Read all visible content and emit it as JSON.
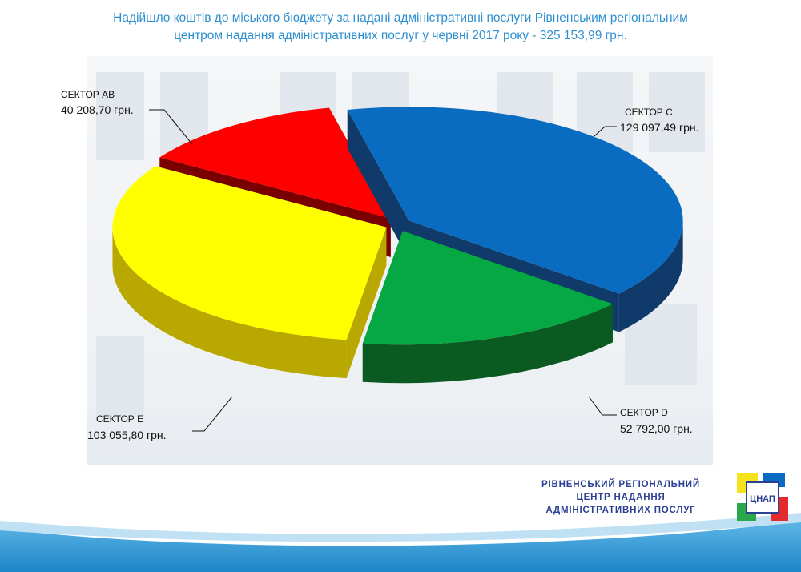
{
  "title_lines": [
    "Надійшло коштів до міського бюджету за надані адміністративні послуги Рівненським регіональним",
    "центром надання адміністративних послуг у червні 2017 року - 325 153,99 грн."
  ],
  "chart_data": {
    "type": "pie",
    "title": "Надійшло коштів до міського бюджету за надані адміністративні послуги Рівненським регіональним центром надання адміністративних послуг у червні 2017 року - 325 153,99 грн.",
    "total": 325153.99,
    "slices": [
      {
        "name": "СЕКТОР С",
        "value": 129097.49,
        "value_label": "129 097,49 грн.",
        "color": "#0a6cc0",
        "dark": "#0f3a6a"
      },
      {
        "name": "СЕКТОР D",
        "value": 52792.0,
        "value_label": "52 792,00 грн.",
        "color": "#05a843",
        "dark": "#0a5a22"
      },
      {
        "name": "СЕКТОР Е",
        "value": 103055.8,
        "value_label": "103 055,80 грн.",
        "color": "#ffff00",
        "dark": "#b8a800"
      },
      {
        "name": "СЕКТОР АВ",
        "value": 40208.7,
        "value_label": "40 208,70 грн.",
        "color": "#ff0000",
        "dark": "#7a0000"
      }
    ]
  },
  "org": {
    "lines": [
      "РІВНЕНСЬКИЙ РЕГІОНАЛЬНИЙ",
      "ЦЕНТР НАДАННЯ",
      "АДМІНІСТРАТИВНИХ ПОСЛУГ"
    ],
    "logo_text": "ЦНАП"
  }
}
